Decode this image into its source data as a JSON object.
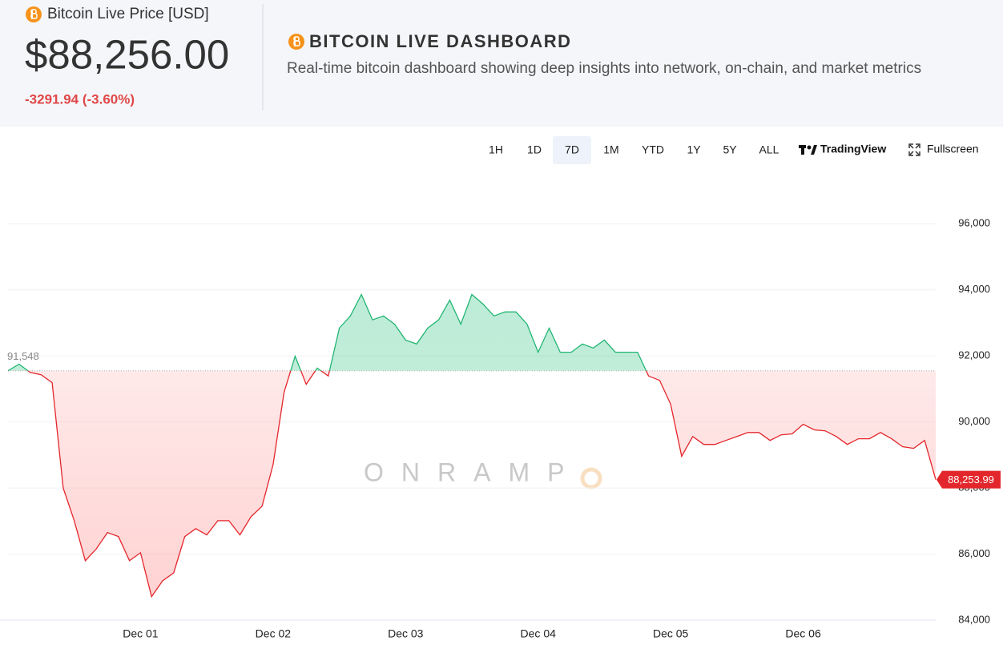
{
  "header": {
    "price_title": "Bitcoin Live Price [USD]",
    "price": "$88,256.00",
    "change": "-3291.94 (-3.60%)",
    "title": "BITCOIN LIVE DASHBOARD",
    "subtitle": "Real-time bitcoin dashboard showing deep insights into network, on-chain, and market metrics"
  },
  "controls": {
    "ranges": [
      "1H",
      "1D",
      "7D",
      "1M",
      "YTD",
      "1Y",
      "5Y",
      "ALL"
    ],
    "active_index": 2,
    "tradingview": "TradingView",
    "fullscreen": "Fullscreen"
  },
  "watermark": "ONRAMP",
  "chart_data": {
    "type": "baseline",
    "categories": [
      null,
      null,
      null,
      null,
      null,
      null,
      null,
      null,
      null,
      null,
      null,
      null,
      "Dec 01",
      null,
      null,
      null,
      null,
      null,
      null,
      null,
      null,
      null,
      null,
      null,
      "Dec 02",
      null,
      null,
      null,
      null,
      null,
      null,
      null,
      null,
      null,
      null,
      null,
      "Dec 03",
      null,
      null,
      null,
      null,
      null,
      null,
      null,
      null,
      null,
      null,
      null,
      "Dec 04",
      null,
      null,
      null,
      null,
      null,
      null,
      null,
      null,
      null,
      null,
      null,
      "Dec 05",
      null,
      null,
      null,
      null,
      null,
      null,
      null,
      null,
      null,
      null,
      null,
      "Dec 06",
      null,
      null,
      null,
      null,
      null,
      null,
      null,
      null,
      null,
      null,
      null,
      null
    ],
    "values": [
      91550,
      91750,
      91500,
      91430,
      91190,
      88000,
      87010,
      85800,
      86160,
      86650,
      86530,
      85800,
      86040,
      84710,
      85190,
      85430,
      86530,
      86770,
      86580,
      87010,
      87010,
      86580,
      87130,
      87450,
      88710,
      90900,
      91990,
      91140,
      91630,
      91390,
      92840,
      93210,
      93860,
      93090,
      93210,
      92960,
      92480,
      92360,
      92840,
      93090,
      93690,
      92960,
      93860,
      93570,
      93210,
      93330,
      93330,
      92960,
      92110,
      92840,
      92110,
      92110,
      92360,
      92240,
      92480,
      92110,
      92110,
      92110,
      91390,
      91260,
      90540,
      88960,
      89560,
      89320,
      89320,
      89440,
      89560,
      89680,
      89680,
      89440,
      89610,
      89640,
      89930,
      89760,
      89730,
      89560,
      89320,
      89490,
      89490,
      89680,
      89490,
      89250,
      89200,
      89440,
      88253.99
    ],
    "value_labels": [
      null,
      null,
      null,
      null,
      null,
      null,
      null,
      null,
      null,
      null,
      null,
      null,
      null,
      null,
      null,
      null,
      null,
      null,
      null,
      null,
      null,
      null,
      null,
      null,
      null,
      null,
      null,
      null,
      null,
      null,
      null,
      null,
      null,
      null,
      null,
      null,
      null,
      null,
      null,
      null,
      null,
      null,
      null,
      null,
      null,
      null,
      null,
      null,
      null,
      null,
      null,
      null,
      null,
      null,
      null,
      null,
      null,
      null,
      null,
      null,
      null,
      null,
      null,
      null,
      null,
      null,
      null,
      null,
      null,
      null,
      null,
      null,
      null,
      null,
      null,
      null,
      null,
      null,
      null,
      null,
      null,
      null,
      null,
      null,
      "88,253.99"
    ],
    "baseline": {
      "value": 91548,
      "label": "91,548"
    },
    "up_color": "#22b573",
    "down_color": "#e3262b",
    "ylim": [
      84000,
      97000
    ],
    "yticks": [
      {
        "value": 84000,
        "label": "84,000"
      },
      {
        "value": 86000,
        "label": "86,000"
      },
      {
        "value": 88000,
        "label": "88,000"
      },
      {
        "value": 90000,
        "label": "90,000"
      },
      {
        "value": 92000,
        "label": "92,000"
      },
      {
        "value": 94000,
        "label": "94,000"
      },
      {
        "value": 96000,
        "label": "96,000"
      }
    ],
    "grid": true
  }
}
